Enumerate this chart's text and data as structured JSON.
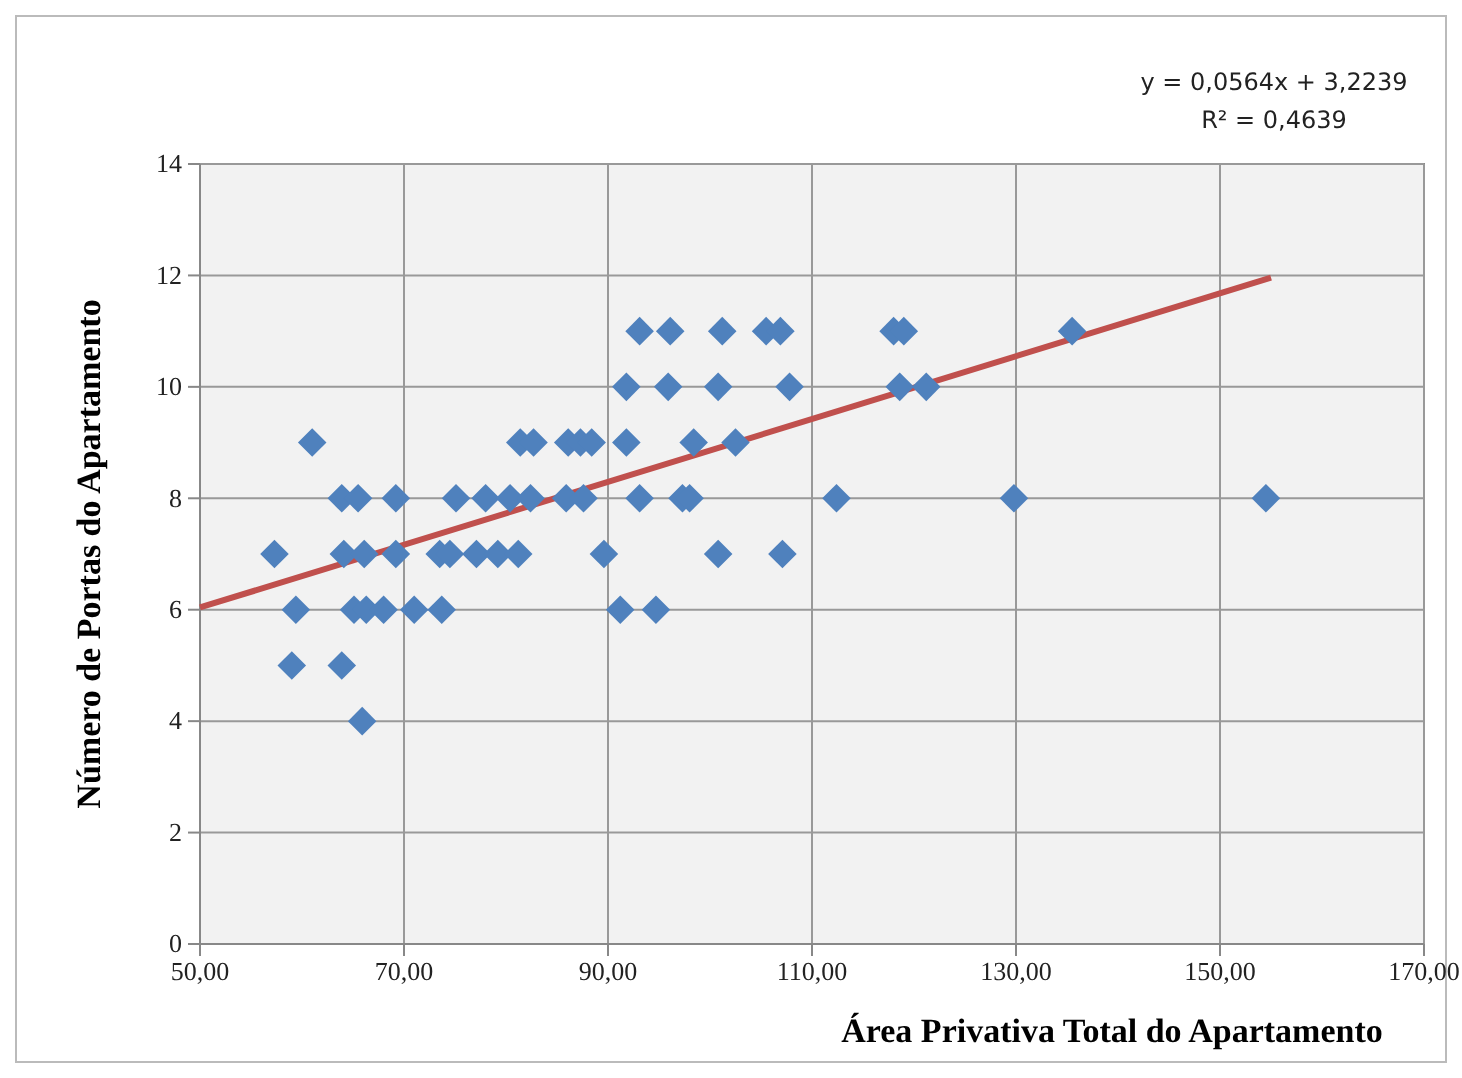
{
  "chart_data": {
    "type": "scatter",
    "xlabel": "Área Privativa Total do Apartamento",
    "ylabel": "Número de Portas do Apartamento",
    "annotations": [
      "y = 0,0564x + 3,2239",
      "R² = 0,4639"
    ],
    "xlim": [
      50,
      170
    ],
    "xticks": [
      {
        "value": 50,
        "label": "50,00"
      },
      {
        "value": 70,
        "label": "70,00"
      },
      {
        "value": 90,
        "label": "90,00"
      },
      {
        "value": 110,
        "label": "110,00"
      },
      {
        "value": 130,
        "label": "130,00"
      },
      {
        "value": 150,
        "label": "150,00"
      },
      {
        "value": 170,
        "label": "170,00"
      }
    ],
    "ylim": [
      0,
      14
    ],
    "yticks": [
      0,
      2,
      4,
      6,
      8,
      10,
      12,
      14
    ],
    "grid": true,
    "series": [
      {
        "color": "#4f81bd",
        "marker": "diamond",
        "x": [
          93.1,
          96.1,
          101.2,
          105.5,
          106.9,
          118.0,
          119.0,
          135.5,
          91.8,
          95.9,
          100.8,
          107.8,
          118.6,
          121.2,
          61.0,
          81.4,
          82.7,
          86.1,
          87.3,
          88.4,
          91.8,
          98.4,
          102.5,
          63.9,
          65.5,
          69.2,
          75.1,
          78.0,
          80.4,
          82.4,
          85.9,
          87.6,
          93.1,
          97.3,
          98.0,
          112.4,
          129.8,
          154.5,
          57.3,
          64.1,
          66.1,
          69.2,
          73.5,
          74.5,
          77.1,
          79.2,
          81.2,
          89.6,
          100.8,
          107.1,
          59.4,
          65.1,
          66.3,
          68.0,
          71.0,
          73.7,
          91.2,
          94.7,
          59.0,
          63.9,
          65.9
        ],
        "values": [
          11,
          11,
          11,
          11,
          11,
          11,
          11,
          11,
          10,
          10,
          10,
          10,
          10,
          10,
          9,
          9,
          9,
          9,
          9,
          9,
          9,
          9,
          9,
          8,
          8,
          8,
          8,
          8,
          8,
          8,
          8,
          8,
          8,
          8,
          8,
          8,
          8,
          8,
          7,
          7,
          7,
          7,
          7,
          7,
          7,
          7,
          7,
          7,
          7,
          7,
          6,
          6,
          6,
          6,
          6,
          6,
          6,
          6,
          5,
          5,
          4
        ]
      },
      {
        "type": "line",
        "color": "#c0504d",
        "marker": "none",
        "line_style": "solid",
        "x": [
          50,
          155
        ],
        "values": [
          6.04,
          11.96
        ]
      }
    ]
  }
}
